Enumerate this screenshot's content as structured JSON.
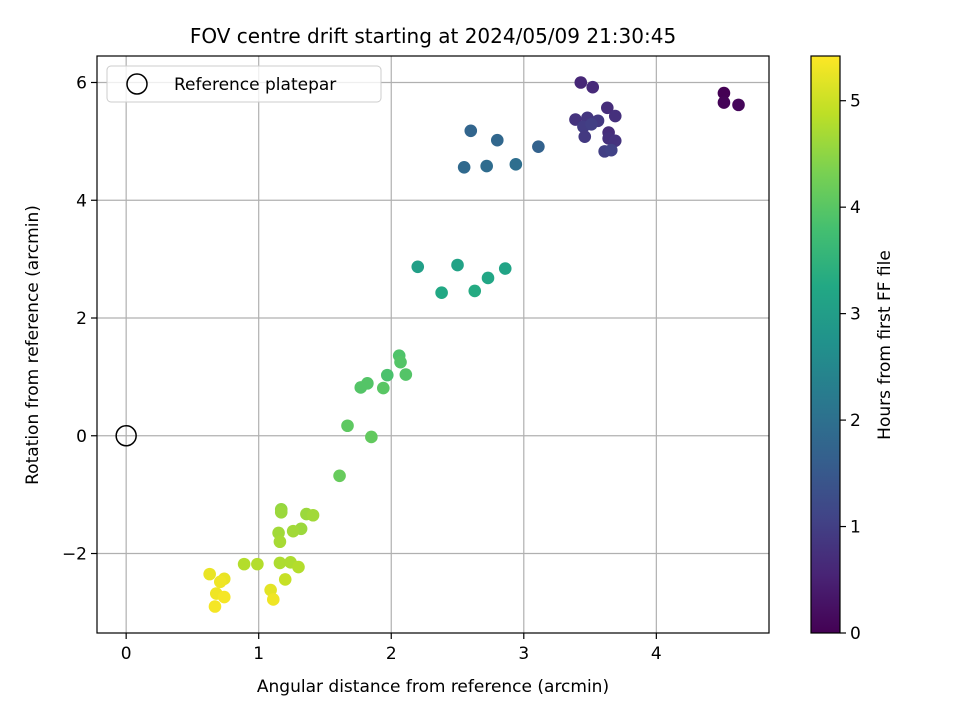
{
  "chart_data": {
    "type": "scatter",
    "title": "FOV centre drift starting at 2024/05/09 21:30:45",
    "xlabel": "Angular distance from reference (arcmin)",
    "ylabel": "Rotation from reference (arcmin)",
    "colorbar_label": "Hours from first FF file",
    "xlim": [
      -0.22,
      4.85
    ],
    "ylim": [
      -3.35,
      6.45
    ],
    "clim": [
      0,
      5.42
    ],
    "x_ticks": [
      0,
      1,
      2,
      3,
      4
    ],
    "x_tick_labels": [
      "0",
      "1",
      "2",
      "3",
      "4"
    ],
    "y_ticks": [
      -2,
      0,
      2,
      4,
      6
    ],
    "y_tick_labels": [
      "−2",
      "0",
      "2",
      "4",
      "6"
    ],
    "colorbar_ticks": [
      0,
      1,
      2,
      3,
      4,
      5
    ],
    "colorbar_tick_labels": [
      "0",
      "1",
      "2",
      "3",
      "4",
      "5"
    ],
    "colormap": "viridis",
    "grid": true,
    "legend_position": "top-left",
    "legend": [
      {
        "label": "Reference platepar",
        "marker": "open-circle",
        "x": 0,
        "y": 0
      }
    ],
    "points": [
      {
        "x": 4.51,
        "y": 5.82,
        "t": 0.0
      },
      {
        "x": 4.51,
        "y": 5.66,
        "t": 0.05
      },
      {
        "x": 4.62,
        "y": 5.62,
        "t": 0.1
      },
      {
        "x": 3.43,
        "y": 6.0,
        "t": 0.6
      },
      {
        "x": 3.52,
        "y": 5.92,
        "t": 0.65
      },
      {
        "x": 3.63,
        "y": 5.57,
        "t": 0.7
      },
      {
        "x": 3.69,
        "y": 5.43,
        "t": 0.75
      },
      {
        "x": 3.39,
        "y": 5.37,
        "t": 0.8
      },
      {
        "x": 3.48,
        "y": 5.4,
        "t": 0.85
      },
      {
        "x": 3.56,
        "y": 5.35,
        "t": 0.9
      },
      {
        "x": 3.45,
        "y": 5.25,
        "t": 0.95
      },
      {
        "x": 3.51,
        "y": 5.29,
        "t": 1.0
      },
      {
        "x": 3.64,
        "y": 5.15,
        "t": 0.7
      },
      {
        "x": 3.64,
        "y": 5.05,
        "t": 0.75
      },
      {
        "x": 3.69,
        "y": 5.01,
        "t": 0.8
      },
      {
        "x": 3.46,
        "y": 5.08,
        "t": 0.9
      },
      {
        "x": 3.61,
        "y": 4.83,
        "t": 1.0
      },
      {
        "x": 3.66,
        "y": 4.85,
        "t": 1.05
      },
      {
        "x": 3.11,
        "y": 4.91,
        "t": 1.7
      },
      {
        "x": 2.6,
        "y": 5.18,
        "t": 1.75
      },
      {
        "x": 2.8,
        "y": 5.02,
        "t": 1.8
      },
      {
        "x": 2.55,
        "y": 4.56,
        "t": 1.85
      },
      {
        "x": 2.72,
        "y": 4.58,
        "t": 1.9
      },
      {
        "x": 2.94,
        "y": 4.61,
        "t": 1.95
      },
      {
        "x": 2.2,
        "y": 2.87,
        "t": 3.05
      },
      {
        "x": 2.5,
        "y": 2.9,
        "t": 3.1
      },
      {
        "x": 2.86,
        "y": 2.84,
        "t": 3.15
      },
      {
        "x": 2.73,
        "y": 2.68,
        "t": 3.2
      },
      {
        "x": 2.38,
        "y": 2.43,
        "t": 3.25
      },
      {
        "x": 2.63,
        "y": 2.46,
        "t": 3.3
      },
      {
        "x": 2.06,
        "y": 1.36,
        "t": 3.9
      },
      {
        "x": 2.07,
        "y": 1.25,
        "t": 3.95
      },
      {
        "x": 1.97,
        "y": 1.03,
        "t": 3.85
      },
      {
        "x": 2.11,
        "y": 1.04,
        "t": 3.95
      },
      {
        "x": 1.82,
        "y": 0.89,
        "t": 3.95
      },
      {
        "x": 1.77,
        "y": 0.82,
        "t": 3.95
      },
      {
        "x": 1.94,
        "y": 0.81,
        "t": 4.0
      },
      {
        "x": 1.67,
        "y": 0.17,
        "t": 4.05
      },
      {
        "x": 1.85,
        "y": -0.02,
        "t": 4.1
      },
      {
        "x": 1.61,
        "y": -0.68,
        "t": 4.15
      },
      {
        "x": 1.17,
        "y": -1.25,
        "t": 4.55
      },
      {
        "x": 1.17,
        "y": -1.3,
        "t": 4.6
      },
      {
        "x": 1.36,
        "y": -1.33,
        "t": 4.6
      },
      {
        "x": 1.41,
        "y": -1.35,
        "t": 4.65
      },
      {
        "x": 1.32,
        "y": -1.58,
        "t": 4.6
      },
      {
        "x": 1.26,
        "y": -1.62,
        "t": 4.65
      },
      {
        "x": 1.15,
        "y": -1.65,
        "t": 4.65
      },
      {
        "x": 1.16,
        "y": -1.8,
        "t": 4.7
      },
      {
        "x": 0.89,
        "y": -2.18,
        "t": 4.8
      },
      {
        "x": 0.99,
        "y": -2.18,
        "t": 4.8
      },
      {
        "x": 1.16,
        "y": -2.16,
        "t": 4.75
      },
      {
        "x": 1.24,
        "y": -2.15,
        "t": 4.75
      },
      {
        "x": 1.3,
        "y": -2.23,
        "t": 4.8
      },
      {
        "x": 1.2,
        "y": -2.44,
        "t": 4.95
      },
      {
        "x": 0.63,
        "y": -2.35,
        "t": 5.25
      },
      {
        "x": 0.74,
        "y": -2.43,
        "t": 5.25
      },
      {
        "x": 0.71,
        "y": -2.48,
        "t": 5.3
      },
      {
        "x": 0.68,
        "y": -2.68,
        "t": 5.3
      },
      {
        "x": 0.74,
        "y": -2.74,
        "t": 5.35
      },
      {
        "x": 1.09,
        "y": -2.62,
        "t": 5.2
      },
      {
        "x": 1.11,
        "y": -2.78,
        "t": 5.3
      },
      {
        "x": 0.67,
        "y": -2.9,
        "t": 5.35
      }
    ]
  }
}
